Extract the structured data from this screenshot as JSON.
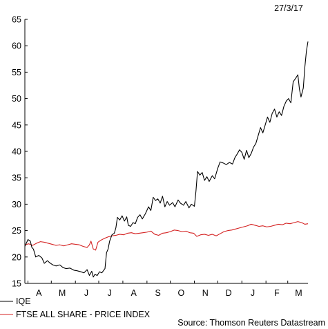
{
  "date_label": "27/3/17",
  "source": "Source: Thomson Reuters Datastream",
  "colors": {
    "iqe": "#000000",
    "ftse": "#d42020",
    "axis": "#000000"
  },
  "chart_data": {
    "type": "line",
    "title": "",
    "xlabel": "",
    "ylabel": "",
    "ylim": [
      15,
      65
    ],
    "yticks": [
      15,
      20,
      25,
      30,
      35,
      40,
      45,
      50,
      55,
      60,
      65
    ],
    "x_range": [
      "2016-03-28",
      "2017-03-27"
    ],
    "xtick_labels": [
      "A",
      "M",
      "J",
      "J",
      "A",
      "S",
      "O",
      "N",
      "D",
      "J",
      "F",
      "M"
    ],
    "xtick_label_dates": [
      "2016-04-15",
      "2016-05-15",
      "2016-06-15",
      "2016-07-15",
      "2016-08-15",
      "2016-09-15",
      "2016-10-15",
      "2016-11-15",
      "2016-12-15",
      "2017-01-15",
      "2017-02-15",
      "2017-03-15"
    ],
    "month_boundaries": [
      "2016-04-01",
      "2016-05-01",
      "2016-06-01",
      "2016-07-01",
      "2016-08-01",
      "2016-09-01",
      "2016-10-01",
      "2016-11-01",
      "2016-12-01",
      "2017-01-01",
      "2017-02-01",
      "2017-03-01"
    ],
    "legend_position": "bottom-left",
    "grid": false,
    "series": [
      {
        "name": "IQE",
        "points": [
          [
            "2016-03-28",
            22.0
          ],
          [
            "2016-04-01",
            23.3
          ],
          [
            "2016-04-04",
            23.0
          ],
          [
            "2016-04-06",
            21.8
          ],
          [
            "2016-04-08",
            21.5
          ],
          [
            "2016-04-11",
            20.0
          ],
          [
            "2016-04-15",
            20.3
          ],
          [
            "2016-04-19",
            19.8
          ],
          [
            "2016-04-22",
            18.8
          ],
          [
            "2016-04-26",
            19.3
          ],
          [
            "2016-04-29",
            18.9
          ],
          [
            "2016-05-03",
            18.5
          ],
          [
            "2016-05-07",
            18.3
          ],
          [
            "2016-05-12",
            18.5
          ],
          [
            "2016-05-16",
            18.0
          ],
          [
            "2016-05-20",
            17.8
          ],
          [
            "2016-05-25",
            17.9
          ],
          [
            "2016-05-30",
            17.5
          ],
          [
            "2016-06-03",
            17.4
          ],
          [
            "2016-06-08",
            17.2
          ],
          [
            "2016-06-12",
            17.0
          ],
          [
            "2016-06-16",
            17.6
          ],
          [
            "2016-06-19",
            16.5
          ],
          [
            "2016-06-22",
            17.3
          ],
          [
            "2016-06-24",
            16.2
          ],
          [
            "2016-06-26",
            16.7
          ],
          [
            "2016-06-29",
            16.5
          ],
          [
            "2016-07-02",
            17.2
          ],
          [
            "2016-07-05",
            17.0
          ],
          [
            "2016-07-09",
            17.8
          ],
          [
            "2016-07-11",
            20.8
          ],
          [
            "2016-07-13",
            21.5
          ],
          [
            "2016-07-15",
            23.0
          ],
          [
            "2016-07-18",
            24.2
          ],
          [
            "2016-07-21",
            24.5
          ],
          [
            "2016-07-23",
            25.5
          ],
          [
            "2016-07-25",
            27.5
          ],
          [
            "2016-07-28",
            27.0
          ],
          [
            "2016-07-31",
            27.8
          ],
          [
            "2016-08-03",
            26.8
          ],
          [
            "2016-08-06",
            27.6
          ],
          [
            "2016-08-08",
            26.0
          ],
          [
            "2016-08-11",
            25.8
          ],
          [
            "2016-08-14",
            26.5
          ],
          [
            "2016-08-17",
            26.3
          ],
          [
            "2016-08-20",
            27.5
          ],
          [
            "2016-08-23",
            28.0
          ],
          [
            "2016-08-26",
            27.2
          ],
          [
            "2016-08-30",
            28.2
          ],
          [
            "2016-09-03",
            29.5
          ],
          [
            "2016-09-06",
            28.8
          ],
          [
            "2016-09-09",
            31.3
          ],
          [
            "2016-09-12",
            30.7
          ],
          [
            "2016-09-15",
            31.0
          ],
          [
            "2016-09-18",
            30.2
          ],
          [
            "2016-09-21",
            31.5
          ],
          [
            "2016-09-24",
            29.5
          ],
          [
            "2016-09-27",
            30.5
          ],
          [
            "2016-09-30",
            29.8
          ],
          [
            "2016-10-04",
            30.3
          ],
          [
            "2016-10-07",
            29.5
          ],
          [
            "2016-10-11",
            30.8
          ],
          [
            "2016-10-14",
            30.2
          ],
          [
            "2016-10-18",
            29.8
          ],
          [
            "2016-10-21",
            30.5
          ],
          [
            "2016-10-25",
            29.3
          ],
          [
            "2016-10-28",
            30.0
          ],
          [
            "2016-11-01",
            29.6
          ],
          [
            "2016-11-03",
            32.5
          ],
          [
            "2016-11-05",
            36.2
          ],
          [
            "2016-11-08",
            35.5
          ],
          [
            "2016-11-11",
            36.0
          ],
          [
            "2016-11-14",
            34.5
          ],
          [
            "2016-11-17",
            35.2
          ],
          [
            "2016-11-20",
            34.3
          ],
          [
            "2016-11-24",
            35.4
          ],
          [
            "2016-11-27",
            34.8
          ],
          [
            "2016-12-01",
            36.8
          ],
          [
            "2016-12-04",
            38.0
          ],
          [
            "2016-12-08",
            37.8
          ],
          [
            "2016-12-12",
            37.5
          ],
          [
            "2016-12-16",
            37.9
          ],
          [
            "2016-12-20",
            37.6
          ],
          [
            "2016-12-23",
            38.8
          ],
          [
            "2016-12-26",
            39.5
          ],
          [
            "2016-12-29",
            40.3
          ],
          [
            "2017-01-01",
            39.8
          ],
          [
            "2017-01-04",
            38.5
          ],
          [
            "2017-01-07",
            40.2
          ],
          [
            "2017-01-10",
            38.8
          ],
          [
            "2017-01-13",
            39.6
          ],
          [
            "2017-01-16",
            40.8
          ],
          [
            "2017-01-19",
            41.5
          ],
          [
            "2017-01-22",
            43.0
          ],
          [
            "2017-01-25",
            44.5
          ],
          [
            "2017-01-28",
            43.5
          ],
          [
            "2017-01-31",
            45.0
          ],
          [
            "2017-02-03",
            46.5
          ],
          [
            "2017-02-06",
            45.5
          ],
          [
            "2017-02-09",
            47.2
          ],
          [
            "2017-02-12",
            48.0
          ],
          [
            "2017-02-15",
            46.5
          ],
          [
            "2017-02-18",
            47.5
          ],
          [
            "2017-02-21",
            46.8
          ],
          [
            "2017-02-24",
            48.5
          ],
          [
            "2017-02-27",
            49.5
          ],
          [
            "2017-03-02",
            50.0
          ],
          [
            "2017-03-05",
            49.2
          ],
          [
            "2017-03-08",
            53.2
          ],
          [
            "2017-03-11",
            53.8
          ],
          [
            "2017-03-14",
            54.5
          ],
          [
            "2017-03-16",
            51.8
          ],
          [
            "2017-03-18",
            50.3
          ],
          [
            "2017-03-21",
            52.0
          ],
          [
            "2017-03-23",
            56.0
          ],
          [
            "2017-03-25",
            59.0
          ],
          [
            "2017-03-27",
            60.8
          ]
        ]
      },
      {
        "name": "FTSE ALL SHARE - PRICE INDEX",
        "points": [
          [
            "2016-03-28",
            22.3
          ],
          [
            "2016-04-02",
            22.5
          ],
          [
            "2016-04-07",
            22.2
          ],
          [
            "2016-04-12",
            22.6
          ],
          [
            "2016-04-17",
            22.9
          ],
          [
            "2016-04-22",
            22.8
          ],
          [
            "2016-04-27",
            22.6
          ],
          [
            "2016-05-02",
            22.4
          ],
          [
            "2016-05-07",
            22.2
          ],
          [
            "2016-05-12",
            22.3
          ],
          [
            "2016-05-17",
            22.1
          ],
          [
            "2016-05-22",
            22.3
          ],
          [
            "2016-05-27",
            22.5
          ],
          [
            "2016-06-01",
            22.4
          ],
          [
            "2016-06-06",
            22.3
          ],
          [
            "2016-06-11",
            22.0
          ],
          [
            "2016-06-16",
            21.8
          ],
          [
            "2016-06-19",
            22.3
          ],
          [
            "2016-06-21",
            23.0
          ],
          [
            "2016-06-24",
            21.5
          ],
          [
            "2016-06-27",
            21.3
          ],
          [
            "2016-06-30",
            22.8
          ],
          [
            "2016-07-04",
            23.2
          ],
          [
            "2016-07-08",
            23.5
          ],
          [
            "2016-07-13",
            23.8
          ],
          [
            "2016-07-18",
            24.0
          ],
          [
            "2016-07-23",
            24.1
          ],
          [
            "2016-07-28",
            24.3
          ],
          [
            "2016-08-02",
            24.2
          ],
          [
            "2016-08-07",
            24.5
          ],
          [
            "2016-08-12",
            24.6
          ],
          [
            "2016-08-17",
            24.4
          ],
          [
            "2016-08-22",
            24.5
          ],
          [
            "2016-08-27",
            24.6
          ],
          [
            "2016-09-01",
            24.7
          ],
          [
            "2016-09-06",
            24.9
          ],
          [
            "2016-09-11",
            24.3
          ],
          [
            "2016-09-16",
            24.1
          ],
          [
            "2016-09-21",
            24.5
          ],
          [
            "2016-09-26",
            24.6
          ],
          [
            "2016-10-01",
            24.8
          ],
          [
            "2016-10-06",
            25.1
          ],
          [
            "2016-10-11",
            25.0
          ],
          [
            "2016-10-16",
            24.8
          ],
          [
            "2016-10-21",
            24.9
          ],
          [
            "2016-10-26",
            24.6
          ],
          [
            "2016-10-31",
            24.5
          ],
          [
            "2016-11-04",
            23.9
          ],
          [
            "2016-11-09",
            24.2
          ],
          [
            "2016-11-14",
            24.3
          ],
          [
            "2016-11-19",
            24.1
          ],
          [
            "2016-11-24",
            24.3
          ],
          [
            "2016-11-29",
            24.0
          ],
          [
            "2016-12-04",
            24.4
          ],
          [
            "2016-12-09",
            24.8
          ],
          [
            "2016-12-14",
            25.0
          ],
          [
            "2016-12-19",
            25.1
          ],
          [
            "2016-12-24",
            25.3
          ],
          [
            "2016-12-29",
            25.5
          ],
          [
            "2017-01-03",
            25.7
          ],
          [
            "2017-01-08",
            25.9
          ],
          [
            "2017-01-13",
            26.2
          ],
          [
            "2017-01-18",
            26.0
          ],
          [
            "2017-01-23",
            25.8
          ],
          [
            "2017-01-28",
            25.9
          ],
          [
            "2017-02-02",
            25.7
          ],
          [
            "2017-02-07",
            25.8
          ],
          [
            "2017-02-12",
            26.0
          ],
          [
            "2017-02-17",
            26.2
          ],
          [
            "2017-02-22",
            26.1
          ],
          [
            "2017-02-27",
            26.4
          ],
          [
            "2017-03-04",
            26.3
          ],
          [
            "2017-03-09",
            26.5
          ],
          [
            "2017-03-14",
            26.7
          ],
          [
            "2017-03-19",
            26.5
          ],
          [
            "2017-03-23",
            26.2
          ],
          [
            "2017-03-27",
            26.3
          ]
        ]
      }
    ]
  }
}
